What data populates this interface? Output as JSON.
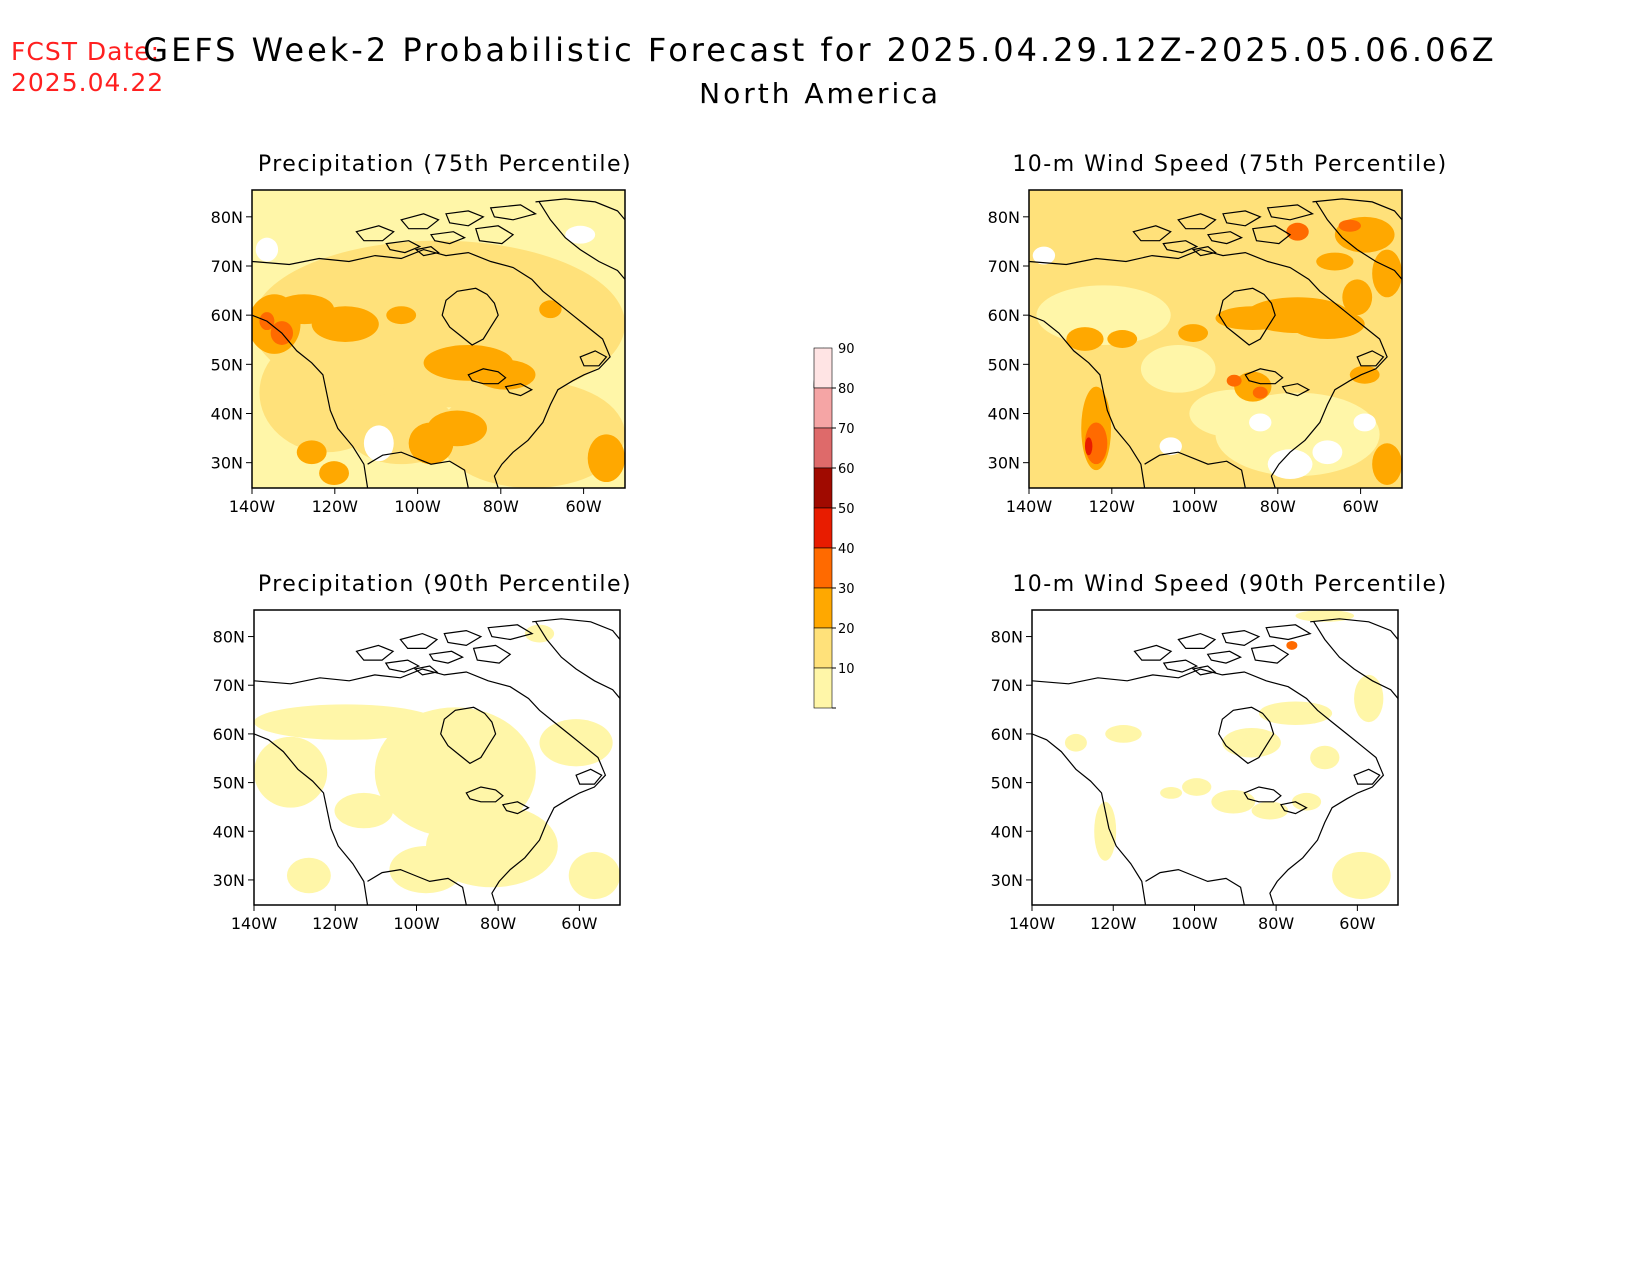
{
  "header": {
    "fcst_label": "FCST Date:",
    "fcst_date": "2025.04.22",
    "title": "GEFS Week-2 Probabilistic Forecast for 2025.04.29.12Z-2025.05.06.06Z",
    "subtitle": "North America"
  },
  "axes": {
    "lat_labels": [
      "80N",
      "70N",
      "60N",
      "50N",
      "40N",
      "30N"
    ],
    "lon_labels": [
      "140W",
      "120W",
      "100W",
      "80W",
      "60W"
    ]
  },
  "panels": [
    {
      "id": "precip75",
      "title": "Precipitation (75th Percentile)"
    },
    {
      "id": "wind75",
      "title": "10-m Wind Speed (75th Percentile)"
    },
    {
      "id": "precip90",
      "title": "Precipitation (90th Percentile)"
    },
    {
      "id": "wind90",
      "title": "10-m Wind Speed (90th Percentile)"
    }
  ],
  "legend": {
    "levels": [
      "10",
      "20",
      "30",
      "40",
      "50",
      "60",
      "70",
      "80",
      "90"
    ],
    "colors": [
      "#fff6a8",
      "#ffe17a",
      "#ffa800",
      "#ff6a00",
      "#e81c00",
      "#a00a00",
      "#de6a6a",
      "#f5a5a5",
      "#ffe4e4"
    ]
  }
}
